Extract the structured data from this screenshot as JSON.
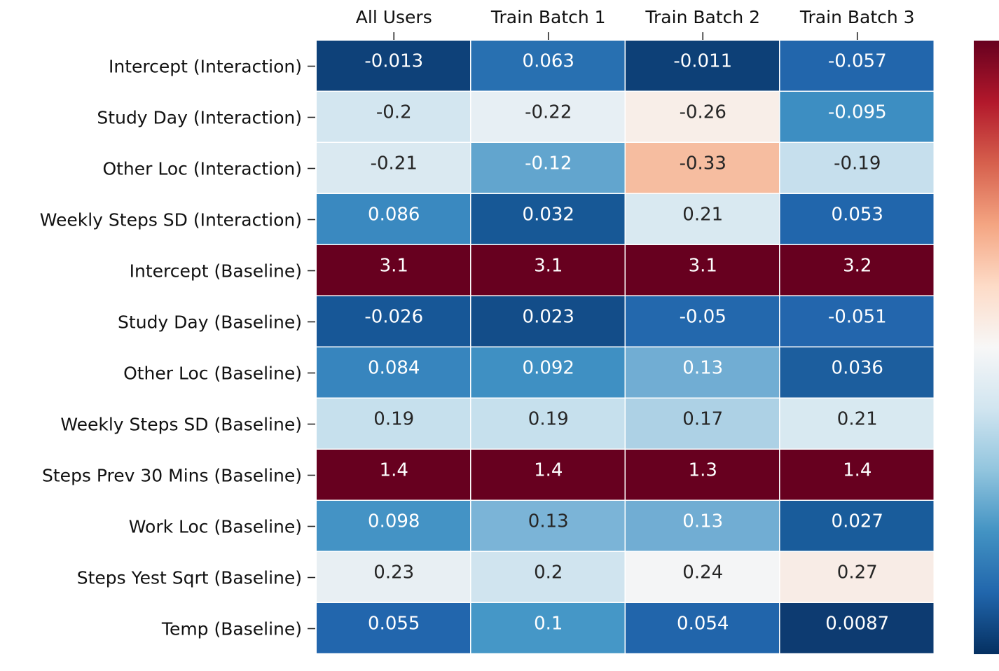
{
  "chart_data": {
    "type": "heatmap",
    "title": "",
    "xlabel": "",
    "ylabel": "",
    "colormap": "RdBu_r",
    "color_scale_min": -0.4,
    "color_scale_max": 0.4,
    "colorbar_tick_labels": [],
    "columns": [
      "All Users",
      "Train Batch 1",
      "Train Batch 2",
      "Train Batch 3"
    ],
    "rows": [
      "Intercept (Interaction)",
      "Study Day (Interaction)",
      "Other Loc (Interaction)",
      "Weekly Steps SD (Interaction)",
      "Intercept (Baseline)",
      "Study Day (Baseline)",
      "Other Loc (Baseline)",
      "Weekly Steps SD (Baseline)",
      "Steps Prev 30 Mins (Baseline)",
      "Work Loc (Baseline)",
      "Steps Yest Sqrt (Baseline)",
      "Temp (Baseline)"
    ],
    "values": [
      [
        -0.013,
        0.063,
        -0.011,
        -0.057
      ],
      [
        -0.2,
        -0.22,
        -0.26,
        -0.095
      ],
      [
        -0.21,
        -0.12,
        -0.33,
        -0.19
      ],
      [
        0.086,
        0.032,
        0.21,
        0.053
      ],
      [
        3.1,
        3.1,
        3.1,
        3.2
      ],
      [
        -0.026,
        0.023,
        -0.05,
        -0.051
      ],
      [
        0.084,
        0.092,
        0.13,
        0.036
      ],
      [
        0.19,
        0.19,
        0.17,
        0.21
      ],
      [
        1.4,
        1.4,
        1.3,
        1.4
      ],
      [
        0.098,
        0.13,
        0.13,
        0.027
      ],
      [
        0.23,
        0.2,
        0.24,
        0.27
      ],
      [
        0.055,
        0.1,
        0.054,
        0.0087
      ]
    ],
    "cell_colors": [
      [
        "#0e4179",
        "#2870b1",
        "#0d4077",
        "#2266ac"
      ],
      [
        "#d3e6f0",
        "#e7eff4",
        "#f8eee8",
        "#3d8ec2"
      ],
      [
        "#dae9f1",
        "#62a5ce",
        "#f6bda0",
        "#c6dfed"
      ],
      [
        "#3a89c0",
        "#175896",
        "#d9e9f1",
        "#2166ac"
      ],
      [
        "#67001f",
        "#67001f",
        "#67001f",
        "#67001f"
      ],
      [
        "#175797",
        "#134d89",
        "#2368ad",
        "#2366ad"
      ],
      [
        "#3785be",
        "#3f90c3",
        "#71add3",
        "#1c5e9e"
      ],
      [
        "#c6e0ed",
        "#c6e0ed",
        "#add1e5",
        "#d8e9f1"
      ],
      [
        "#67001f",
        "#67001f",
        "#67001f",
        "#67001f"
      ],
      [
        "#4493c5",
        "#7bb4d7",
        "#71add3",
        "#195c9b"
      ],
      [
        "#e8eff3",
        "#d0e4ef",
        "#f4f5f6",
        "#f8ece6"
      ],
      [
        "#2266ad",
        "#4597c7",
        "#2165ab",
        "#0d3b71"
      ]
    ],
    "cell_text_colors": [
      [
        "#ffffff",
        "#ffffff",
        "#ffffff",
        "#ffffff"
      ],
      [
        "#262626",
        "#262626",
        "#262626",
        "#ffffff"
      ],
      [
        "#262626",
        "#ffffff",
        "#262626",
        "#262626"
      ],
      [
        "#ffffff",
        "#ffffff",
        "#262626",
        "#ffffff"
      ],
      [
        "#ffffff",
        "#ffffff",
        "#ffffff",
        "#ffffff"
      ],
      [
        "#ffffff",
        "#ffffff",
        "#ffffff",
        "#ffffff"
      ],
      [
        "#ffffff",
        "#ffffff",
        "#ffffff",
        "#ffffff"
      ],
      [
        "#262626",
        "#262626",
        "#262626",
        "#262626"
      ],
      [
        "#ffffff",
        "#ffffff",
        "#ffffff",
        "#ffffff"
      ],
      [
        "#ffffff",
        "#262626",
        "#ffffff",
        "#ffffff"
      ],
      [
        "#262626",
        "#262626",
        "#262626",
        "#262626"
      ],
      [
        "#ffffff",
        "#ffffff",
        "#ffffff",
        "#ffffff"
      ]
    ],
    "colorbar_stops": [
      "#053061",
      "#2166ac",
      "#4393c3",
      "#92c5de",
      "#d1e5f0",
      "#f7f7f7",
      "#fddbc7",
      "#f4a582",
      "#d6604d",
      "#b2182b",
      "#67001f"
    ]
  }
}
